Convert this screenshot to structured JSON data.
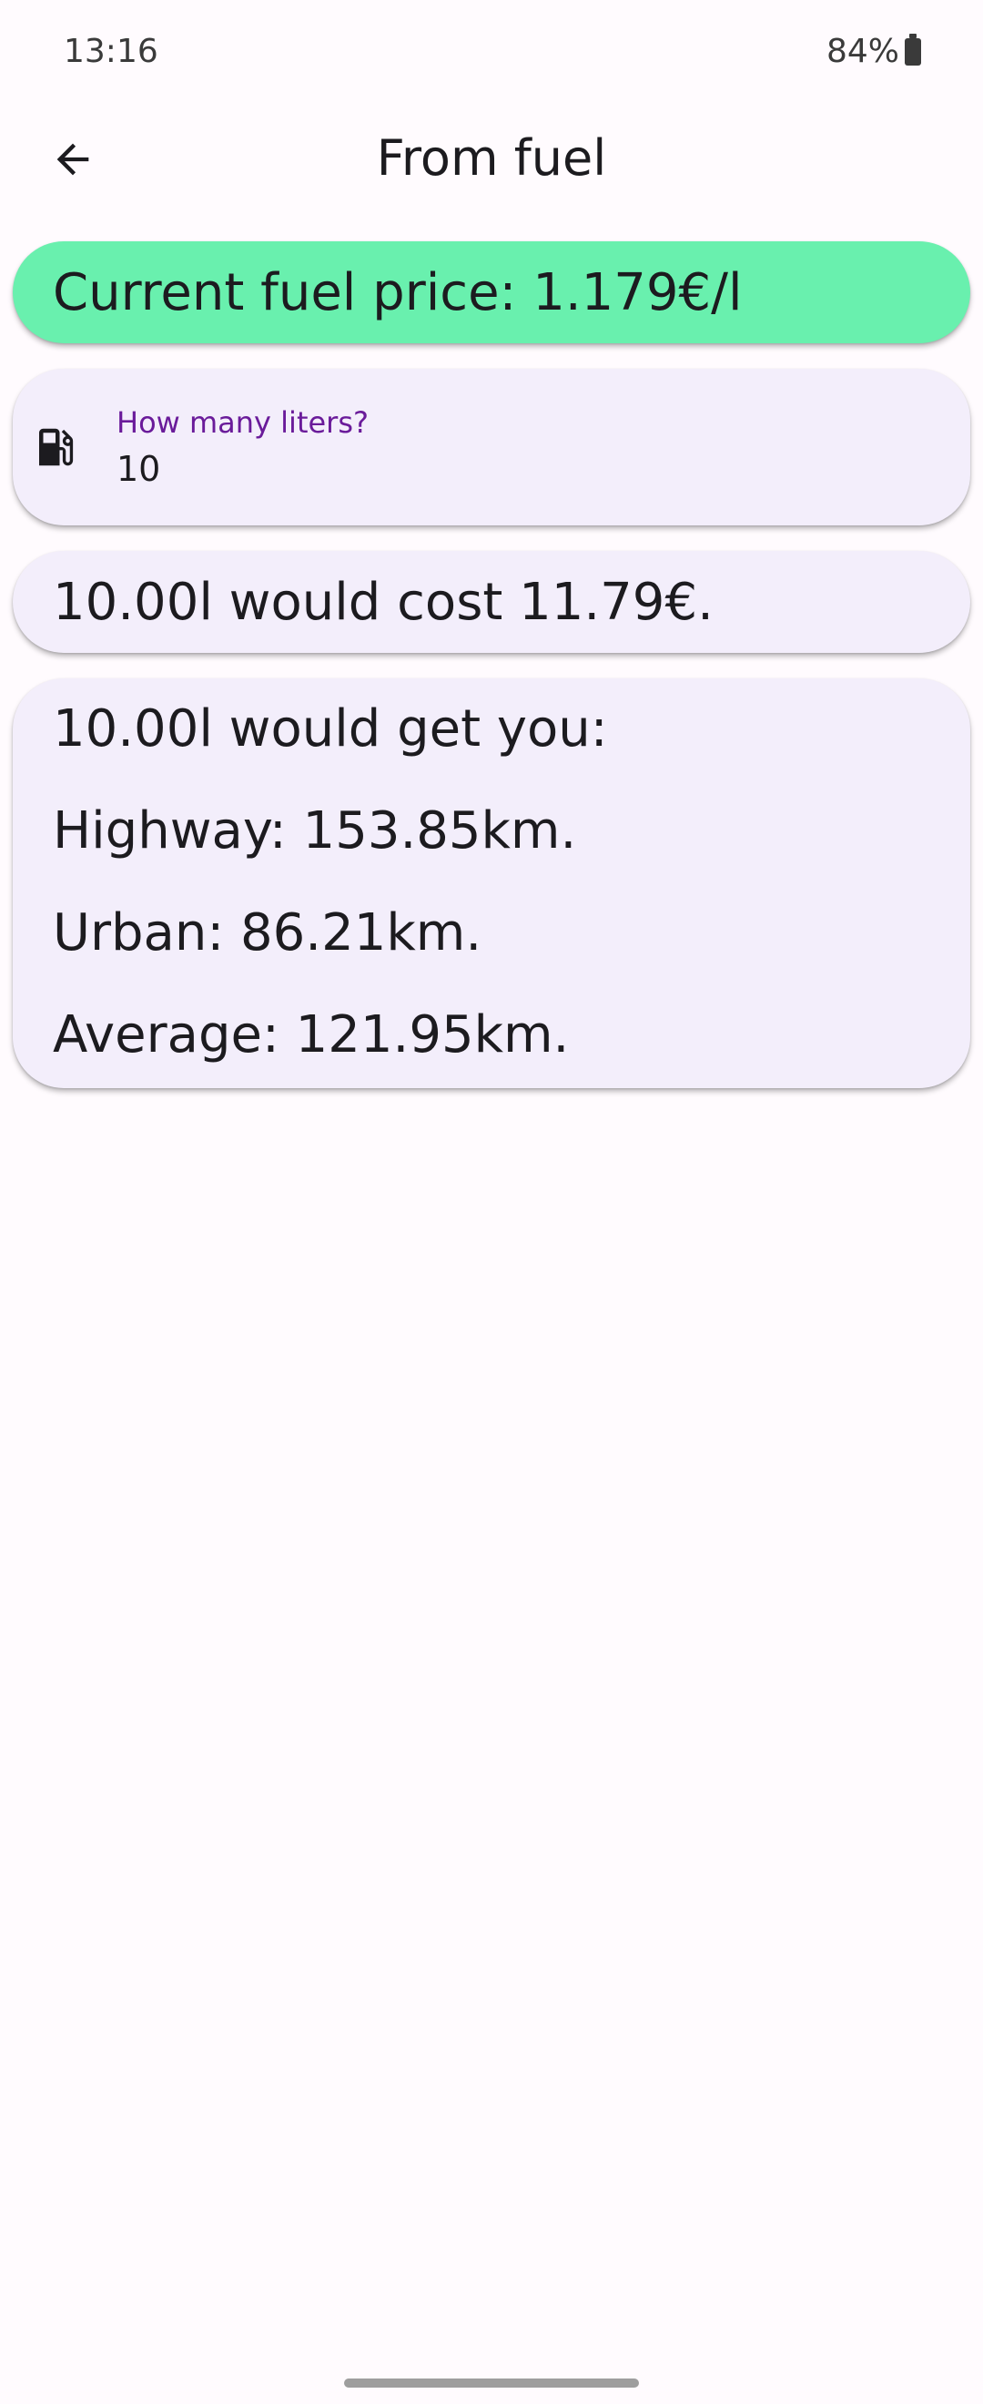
{
  "status_bar": {
    "time": "13:16",
    "battery": "84%"
  },
  "app_bar": {
    "title": "From fuel",
    "back_icon": "arrow-back-icon"
  },
  "price_card": {
    "text": "Current fuel price: 1.179€/l",
    "color": "#69f0ae"
  },
  "liters_input": {
    "icon": "fuel-pump-icon",
    "label": "How many liters?",
    "value": "10",
    "label_color": "#6a1b9a"
  },
  "cost_card": {
    "text": "10.00l would cost 11.79€."
  },
  "results_card": {
    "heading": "10.00l would get you:",
    "lines": [
      "Highway: 153.85km.",
      "Urban: 86.21km.",
      "Average: 121.95km."
    ]
  }
}
